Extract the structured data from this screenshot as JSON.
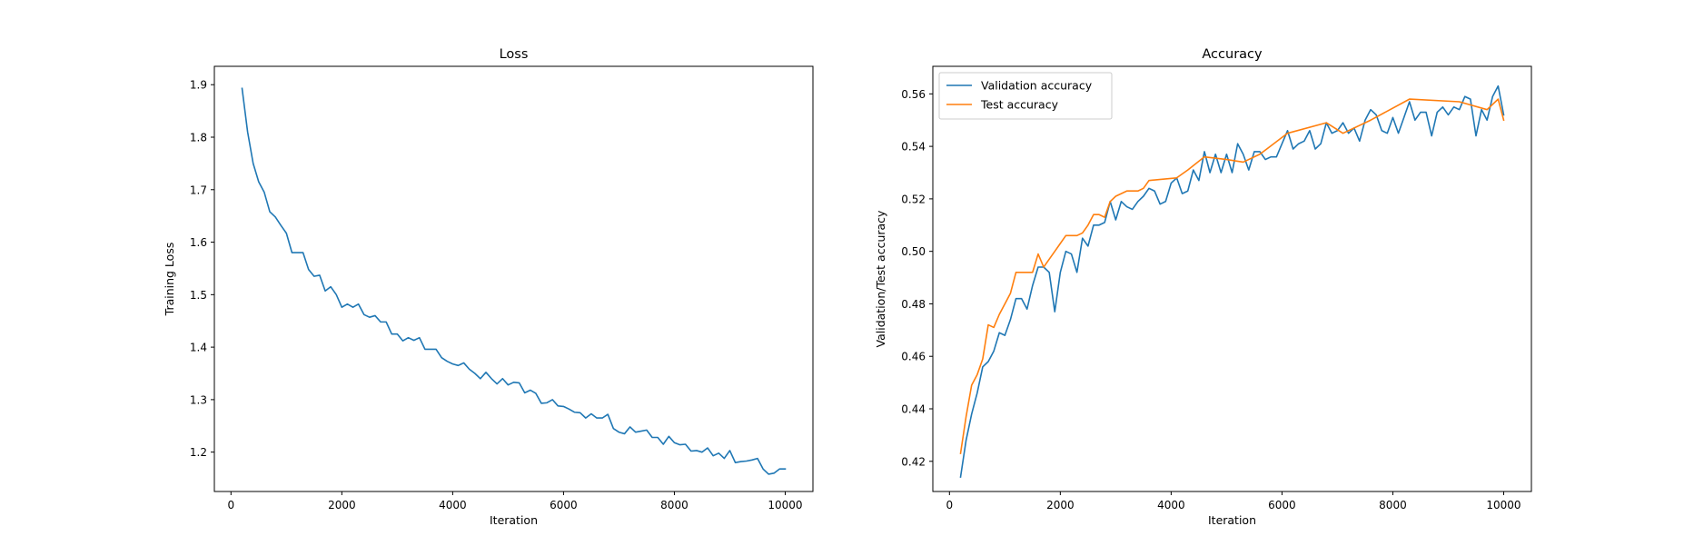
{
  "chart_data": [
    {
      "type": "line",
      "title": "Loss",
      "xlabel": "Iteration",
      "ylabel": "Training Loss",
      "xlim": [
        -300,
        10500
      ],
      "ylim": [
        1.125,
        1.935
      ],
      "xticks": [
        0,
        2000,
        4000,
        6000,
        8000,
        10000
      ],
      "yticks": [
        1.2,
        1.3,
        1.4,
        1.5,
        1.6,
        1.7,
        1.8,
        1.9
      ],
      "ytick_decimals": 1,
      "grid": false,
      "series": [
        {
          "color": "#1f77b4",
          "x": [
            200,
            300,
            400,
            500,
            600,
            700,
            800,
            900,
            1000,
            1100,
            1200,
            1300,
            1400,
            1500,
            1600,
            1700,
            1800,
            1900,
            2000,
            2100,
            2200,
            2300,
            2400,
            2500,
            2600,
            2700,
            2800,
            2900,
            3000,
            3100,
            3200,
            3300,
            3400,
            3500,
            3600,
            3700,
            3800,
            3900,
            4000,
            4100,
            4200,
            4300,
            4400,
            4500,
            4600,
            4700,
            4800,
            4900,
            5000,
            5100,
            5200,
            5300,
            5400,
            5500,
            5600,
            5700,
            5800,
            5900,
            6000,
            6100,
            6200,
            6300,
            6400,
            6500,
            6600,
            6700,
            6800,
            6900,
            7000,
            7100,
            7200,
            7300,
            7400,
            7500,
            7600,
            7700,
            7800,
            7900,
            8000,
            8100,
            8200,
            8300,
            8400,
            8500,
            8600,
            8700,
            8800,
            8900,
            9000,
            9100,
            9200,
            9300,
            9400,
            9500,
            9600,
            9700,
            9800,
            9900,
            10000
          ],
          "values": [
            1.893,
            1.81,
            1.75,
            1.715,
            1.695,
            1.658,
            1.648,
            1.632,
            1.617,
            1.58,
            1.58,
            1.58,
            1.548,
            1.535,
            1.537,
            1.507,
            1.515,
            1.5,
            1.476,
            1.482,
            1.476,
            1.482,
            1.462,
            1.457,
            1.46,
            1.448,
            1.448,
            1.425,
            1.425,
            1.412,
            1.418,
            1.413,
            1.418,
            1.396,
            1.396,
            1.396,
            1.38,
            1.373,
            1.368,
            1.365,
            1.37,
            1.358,
            1.35,
            1.34,
            1.352,
            1.34,
            1.33,
            1.34,
            1.328,
            1.333,
            1.332,
            1.313,
            1.318,
            1.312,
            1.293,
            1.294,
            1.3,
            1.288,
            1.287,
            1.282,
            1.276,
            1.275,
            1.265,
            1.273,
            1.265,
            1.265,
            1.272,
            1.245,
            1.238,
            1.235,
            1.248,
            1.238,
            1.24,
            1.242,
            1.228,
            1.228,
            1.215,
            1.23,
            1.218,
            1.214,
            1.215,
            1.202,
            1.203,
            1.2,
            1.208,
            1.193,
            1.198,
            1.188,
            1.203,
            1.18,
            1.182,
            1.183,
            1.185,
            1.188,
            1.168,
            1.158,
            1.16,
            1.168,
            1.168
          ]
        }
      ]
    },
    {
      "type": "line",
      "title": "Accuracy",
      "xlabel": "Iteration",
      "ylabel": "Validation/Test accuracy",
      "xlim": [
        -300,
        10500
      ],
      "ylim": [
        0.4085,
        0.5705
      ],
      "xticks": [
        0,
        2000,
        4000,
        6000,
        8000,
        10000
      ],
      "yticks": [
        0.42,
        0.44,
        0.46,
        0.48,
        0.5,
        0.52,
        0.54,
        0.56
      ],
      "ytick_decimals": 2,
      "grid": false,
      "legend": "upper-left",
      "series": [
        {
          "name": "Validation accuracy",
          "color": "#1f77b4",
          "x": [
            200,
            300,
            400,
            500,
            600,
            700,
            800,
            900,
            1000,
            1100,
            1200,
            1300,
            1400,
            1500,
            1600,
            1700,
            1800,
            1900,
            2000,
            2100,
            2200,
            2300,
            2400,
            2500,
            2600,
            2700,
            2800,
            2900,
            3000,
            3100,
            3200,
            3300,
            3400,
            3500,
            3600,
            3700,
            3800,
            3900,
            4000,
            4100,
            4200,
            4300,
            4400,
            4500,
            4600,
            4700,
            4800,
            4900,
            5000,
            5100,
            5200,
            5300,
            5400,
            5500,
            5600,
            5700,
            5800,
            5900,
            6000,
            6100,
            6200,
            6300,
            6400,
            6500,
            6600,
            6700,
            6800,
            6900,
            7000,
            7100,
            7200,
            7300,
            7400,
            7500,
            7600,
            7700,
            7800,
            7900,
            8000,
            8100,
            8200,
            8300,
            8400,
            8500,
            8600,
            8700,
            8800,
            8900,
            9000,
            9100,
            9200,
            9300,
            9400,
            9500,
            9600,
            9700,
            9800,
            9900,
            10000
          ],
          "values": [
            0.414,
            0.428,
            0.438,
            0.446,
            0.456,
            0.458,
            0.462,
            0.469,
            0.468,
            0.474,
            0.482,
            0.482,
            0.478,
            0.487,
            0.494,
            0.494,
            0.492,
            0.477,
            0.492,
            0.5,
            0.499,
            0.492,
            0.505,
            0.502,
            0.51,
            0.51,
            0.511,
            0.519,
            0.512,
            0.519,
            0.517,
            0.516,
            0.519,
            0.521,
            0.524,
            0.523,
            0.518,
            0.519,
            0.526,
            0.528,
            0.522,
            0.523,
            0.531,
            0.527,
            0.538,
            0.53,
            0.537,
            0.53,
            0.537,
            0.53,
            0.541,
            0.537,
            0.531,
            0.538,
            0.538,
            0.535,
            0.536,
            0.536,
            0.541,
            0.546,
            0.539,
            0.541,
            0.542,
            0.546,
            0.539,
            0.541,
            0.549,
            0.545,
            0.546,
            0.549,
            0.545,
            0.547,
            0.542,
            0.55,
            0.554,
            0.552,
            0.546,
            0.545,
            0.551,
            0.545,
            0.551,
            0.557,
            0.55,
            0.553,
            0.553,
            0.544,
            0.553,
            0.555,
            0.552,
            0.555,
            0.554,
            0.559,
            0.558,
            0.544,
            0.554,
            0.55,
            0.559,
            0.563,
            0.552
          ]
        },
        {
          "name": "Test accuracy",
          "color": "#ff7f0e",
          "x": [
            200,
            300,
            400,
            500,
            600,
            700,
            800,
            900,
            1000,
            1100,
            1200,
            1300,
            1400,
            1500,
            1600,
            1700,
            1800,
            1900,
            2000,
            2100,
            2200,
            2300,
            2400,
            2500,
            2600,
            2700,
            2800,
            2900,
            3000,
            3100,
            3200,
            3300,
            3400,
            3500,
            3600,
            4100,
            4300,
            4600,
            5000,
            5300,
            5600,
            6100,
            6800,
            7100,
            7600,
            8300,
            9200,
            9700,
            9900,
            10000
          ],
          "values": [
            0.423,
            0.437,
            0.449,
            0.453,
            0.459,
            0.472,
            0.471,
            0.476,
            0.48,
            0.484,
            0.492,
            0.492,
            0.492,
            0.492,
            0.499,
            0.494,
            0.497,
            0.5,
            0.503,
            0.506,
            0.506,
            0.506,
            0.507,
            0.51,
            0.514,
            0.514,
            0.513,
            0.519,
            0.521,
            0.522,
            0.523,
            0.523,
            0.523,
            0.524,
            0.527,
            0.528,
            0.531,
            0.536,
            0.535,
            0.534,
            0.537,
            0.545,
            0.549,
            0.545,
            0.55,
            0.558,
            0.557,
            0.554,
            0.558,
            0.55
          ]
        }
      ]
    }
  ]
}
